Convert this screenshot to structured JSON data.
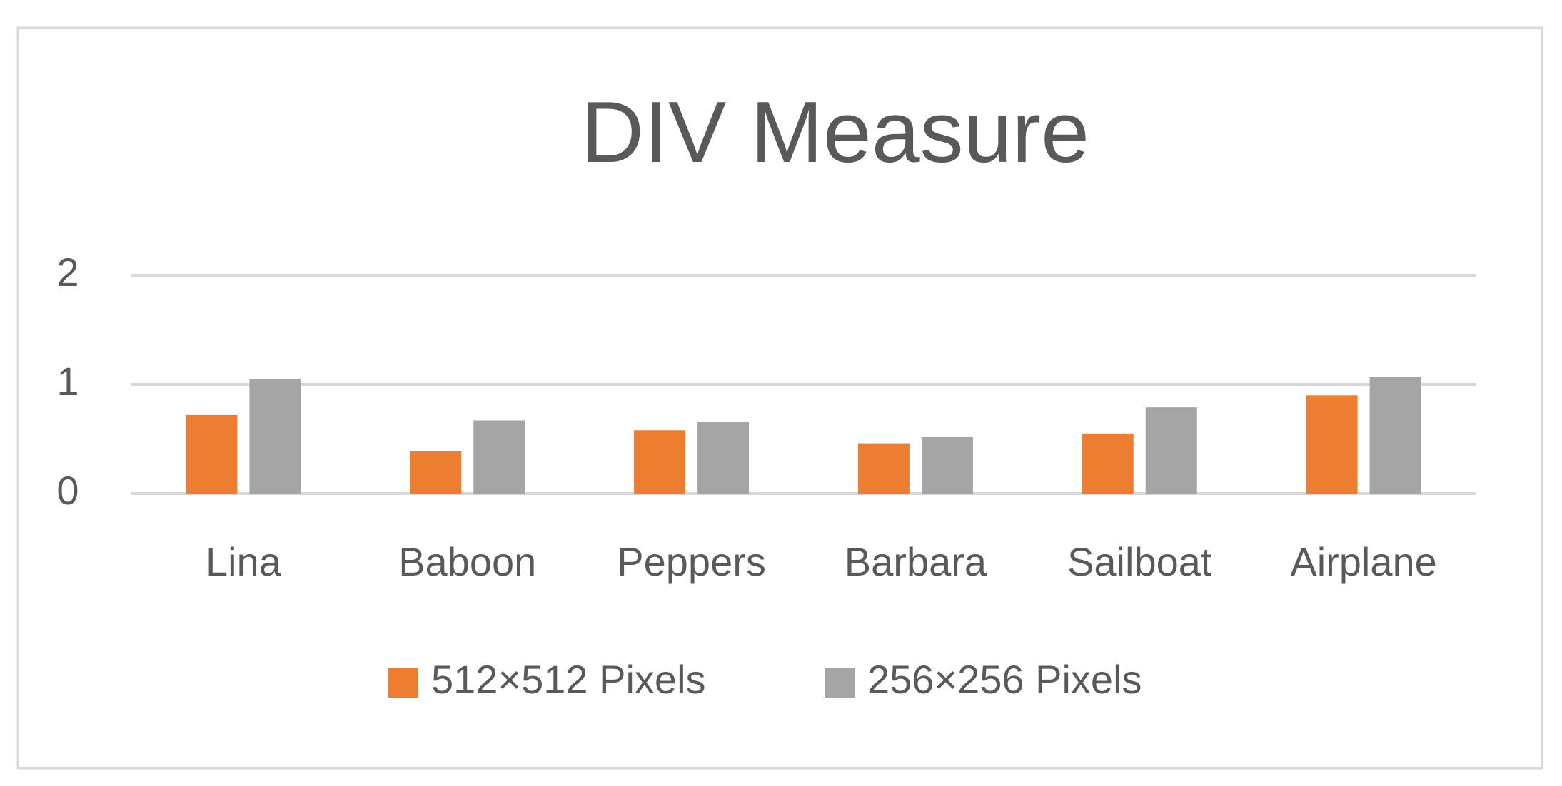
{
  "chart_data": {
    "type": "bar",
    "title": "DIV Measure",
    "categories": [
      "Lina",
      "Baboon",
      "Peppers",
      "Barbara",
      "Sailboat",
      "Airplane"
    ],
    "series": [
      {
        "name": "512×512 Pixels",
        "color": "#ed7d31",
        "values": [
          0.72,
          0.39,
          0.58,
          0.46,
          0.55,
          0.9
        ]
      },
      {
        "name": "256×256 Pixels",
        "color": "#a5a5a5",
        "values": [
          1.05,
          0.67,
          0.66,
          0.52,
          0.79,
          1.07
        ]
      }
    ],
    "ylim": [
      0,
      2
    ],
    "yticks": [
      0,
      1,
      2
    ],
    "grid": true,
    "legend": "bottom"
  }
}
